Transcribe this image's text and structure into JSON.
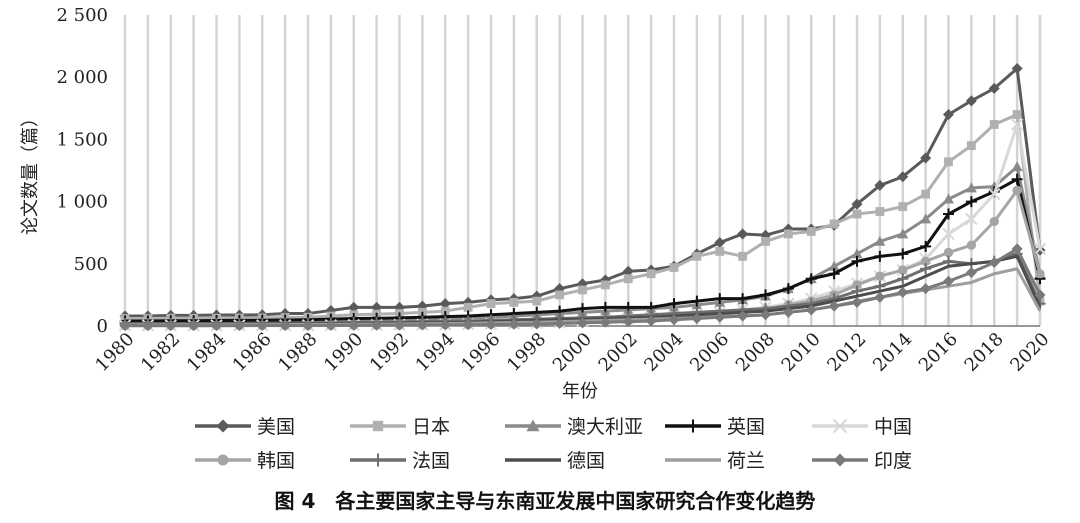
{
  "chart_data": {
    "type": "line",
    "title": "",
    "caption": "图 4　各主要国家主导与东南亚发展中国家研究合作变化趋势",
    "xlabel": "年份",
    "ylabel": "论文数量（篇）",
    "ylim": [
      0,
      2500
    ],
    "yticks": [
      0,
      500,
      1000,
      1500,
      2000,
      2500
    ],
    "ytick_labels": [
      "0",
      "500",
      "1 000",
      "1 500",
      "2 000",
      "2 500"
    ],
    "x": [
      1980,
      1981,
      1982,
      1983,
      1984,
      1985,
      1986,
      1987,
      1988,
      1989,
      1990,
      1991,
      1992,
      1993,
      1994,
      1995,
      1996,
      1997,
      1998,
      1999,
      2000,
      2001,
      2002,
      2003,
      2004,
      2005,
      2006,
      2007,
      2008,
      2009,
      2010,
      2011,
      2012,
      2013,
      2014,
      2015,
      2016,
      2017,
      2018,
      2019,
      2020
    ],
    "xtick_labels": [
      "1980",
      "1982",
      "1984",
      "1986",
      "1988",
      "1990",
      "1992",
      "1994",
      "1996",
      "1998",
      "2000",
      "2002",
      "2004",
      "2006",
      "2008",
      "2010",
      "2012",
      "2014",
      "2016",
      "2018",
      "2020"
    ],
    "grid": "vertical",
    "legend_position": "bottom",
    "series": [
      {
        "name": "美国",
        "color": "#5a5a5a",
        "marker": "diamond",
        "values": [
          80,
          80,
          85,
          85,
          88,
          88,
          90,
          100,
          100,
          125,
          150,
          150,
          150,
          160,
          180,
          190,
          210,
          220,
          240,
          300,
          340,
          370,
          440,
          450,
          480,
          580,
          670,
          740,
          730,
          780,
          780,
          810,
          980,
          1130,
          1200,
          1350,
          1700,
          1810,
          1910,
          2070,
          610
        ]
      },
      {
        "name": "日本",
        "color": "#b0b0b0",
        "marker": "square",
        "values": [
          60,
          60,
          62,
          62,
          62,
          64,
          65,
          68,
          70,
          80,
          90,
          95,
          100,
          110,
          120,
          150,
          180,
          190,
          200,
          250,
          290,
          330,
          380,
          420,
          470,
          560,
          600,
          560,
          680,
          740,
          760,
          820,
          900,
          920,
          960,
          1060,
          1320,
          1450,
          1620,
          1700,
          200
        ]
      },
      {
        "name": "澳大利亚",
        "color": "#8a8a8a",
        "marker": "triangle",
        "values": [
          30,
          30,
          30,
          32,
          32,
          33,
          34,
          35,
          38,
          40,
          42,
          45,
          50,
          55,
          60,
          65,
          70,
          80,
          90,
          100,
          110,
          120,
          130,
          140,
          150,
          170,
          190,
          210,
          240,
          300,
          380,
          480,
          580,
          680,
          740,
          860,
          1020,
          1110,
          1120,
          1280,
          420
        ]
      },
      {
        "name": "英国",
        "color": "#111111",
        "marker": "plus",
        "values": [
          40,
          40,
          42,
          42,
          44,
          45,
          46,
          48,
          50,
          55,
          60,
          62,
          65,
          70,
          75,
          80,
          90,
          100,
          110,
          120,
          140,
          150,
          150,
          150,
          180,
          200,
          220,
          220,
          250,
          300,
          380,
          420,
          520,
          560,
          580,
          640,
          900,
          1000,
          1080,
          1180,
          380
        ]
      },
      {
        "name": "中国",
        "color": "#d8d8d8",
        "marker": "x",
        "values": [
          5,
          5,
          5,
          5,
          5,
          5,
          5,
          6,
          6,
          6,
          8,
          8,
          10,
          10,
          12,
          15,
          18,
          20,
          25,
          30,
          40,
          50,
          60,
          70,
          80,
          95,
          110,
          130,
          150,
          180,
          220,
          280,
          340,
          400,
          450,
          540,
          740,
          860,
          1060,
          1620,
          620
        ]
      },
      {
        "name": "韩国",
        "color": "#a5a5a5",
        "marker": "circle",
        "values": [
          2,
          2,
          2,
          2,
          2,
          3,
          3,
          3,
          3,
          4,
          5,
          6,
          7,
          8,
          10,
          12,
          14,
          16,
          20,
          25,
          30,
          40,
          50,
          60,
          70,
          80,
          90,
          110,
          130,
          170,
          200,
          250,
          330,
          400,
          450,
          520,
          590,
          650,
          840,
          1090,
          420
        ]
      },
      {
        "name": "法国",
        "color": "#6e6e6e",
        "marker": "plus",
        "values": [
          20,
          20,
          20,
          20,
          20,
          20,
          22,
          22,
          24,
          25,
          28,
          30,
          32,
          35,
          38,
          40,
          45,
          50,
          55,
          60,
          65,
          70,
          80,
          90,
          100,
          110,
          120,
          130,
          140,
          160,
          180,
          220,
          280,
          320,
          380,
          460,
          520,
          500,
          520,
          580,
          180
        ]
      },
      {
        "name": "德国",
        "color": "#4d4d4d",
        "marker": "none",
        "values": [
          15,
          15,
          15,
          15,
          15,
          16,
          16,
          17,
          18,
          19,
          20,
          22,
          24,
          26,
          28,
          30,
          35,
          40,
          45,
          50,
          55,
          60,
          65,
          70,
          80,
          90,
          100,
          110,
          120,
          140,
          160,
          200,
          240,
          280,
          320,
          400,
          480,
          500,
          520,
          560,
          150
        ]
      },
      {
        "name": "荷兰",
        "color": "#9e9e9e",
        "marker": "none",
        "values": [
          10,
          10,
          10,
          10,
          10,
          11,
          11,
          12,
          12,
          13,
          14,
          15,
          16,
          18,
          20,
          22,
          25,
          28,
          30,
          35,
          40,
          45,
          50,
          55,
          60,
          65,
          70,
          80,
          90,
          110,
          130,
          160,
          200,
          230,
          260,
          290,
          320,
          350,
          420,
          460,
          120
        ]
      },
      {
        "name": "印度",
        "color": "#7a7a7a",
        "marker": "diamond",
        "values": [
          3,
          3,
          3,
          3,
          3,
          3,
          4,
          4,
          4,
          5,
          5,
          6,
          7,
          8,
          9,
          10,
          12,
          14,
          16,
          20,
          25,
          30,
          35,
          40,
          50,
          60,
          70,
          80,
          90,
          110,
          130,
          160,
          190,
          230,
          270,
          300,
          360,
          430,
          510,
          620,
          250
        ]
      }
    ]
  }
}
